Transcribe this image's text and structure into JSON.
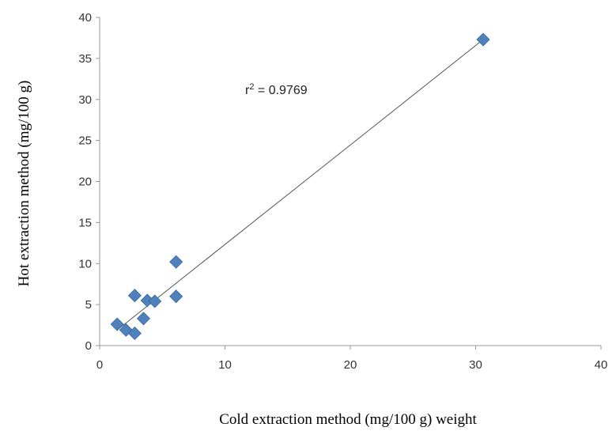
{
  "chart_data": {
    "type": "scatter",
    "title": "",
    "xlabel": "Cold extraction method (mg/100 g) weight",
    "ylabel": "Hot extraction method (mg/100 g)",
    "xlim": [
      0,
      40
    ],
    "ylim": [
      0,
      40
    ],
    "xticks": [
      "0",
      "10",
      "20",
      "30",
      "40"
    ],
    "yticks": [
      "0",
      "5",
      "10",
      "15",
      "20",
      "25",
      "30",
      "35",
      "40"
    ],
    "grid": false,
    "legend": "none",
    "series": [
      {
        "marker": "diamond",
        "color": "#4F81BD",
        "x": [
          1.4,
          2.1,
          2.8,
          2.8,
          3.5,
          3.8,
          4.4,
          6.1,
          6.1,
          30.6
        ],
        "y": [
          2.6,
          1.9,
          1.5,
          6.1,
          3.3,
          5.5,
          5.4,
          10.2,
          6.0,
          37.3
        ]
      }
    ],
    "trendline": {
      "type": "linear",
      "color": "#555555",
      "x_range": [
        1.4,
        30.6
      ],
      "y_range": [
        1.9,
        37.3
      ]
    },
    "annotation": {
      "r_text": "r",
      "r_sup": "2",
      "value_text": " = 0.9769"
    }
  }
}
